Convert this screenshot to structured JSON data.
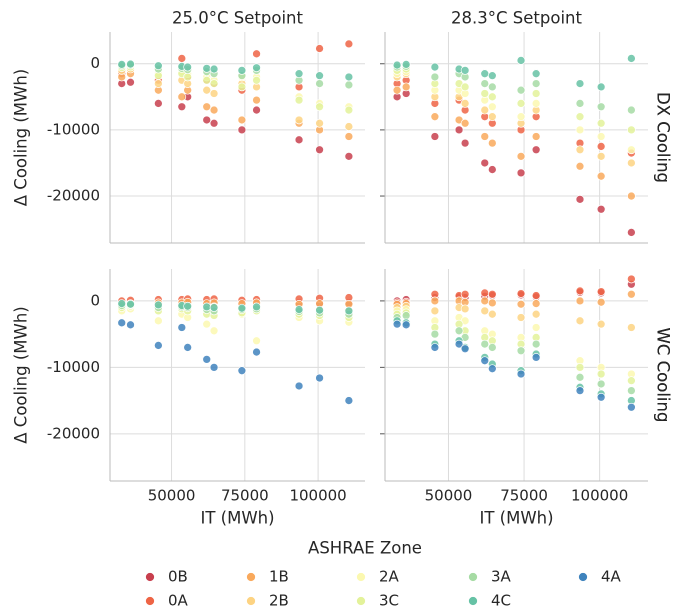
{
  "chart_data": [
    {
      "type": "scatter",
      "title": "25.0°C Setpoint",
      "row_label": "DX Cooling",
      "ylabel": "Δ Cooling (MWh)",
      "legend_title": "ASHRAE Zone",
      "grid": true,
      "xlim": [
        29000,
        116000
      ],
      "ylim": [
        -27100,
        4800
      ],
      "xticks": [
        50000,
        75000,
        100000
      ],
      "yticks": [
        0,
        -10000,
        -20000
      ],
      "x": [
        33000,
        36000,
        45500,
        53500,
        55500,
        62000,
        64500,
        74000,
        79000,
        93500,
        100500,
        110500
      ],
      "series": [
        {
          "name": "0B",
          "color": "#c83f4e",
          "values": [
            -3000,
            -2800,
            -6000,
            -6500,
            -5000,
            -8500,
            -9000,
            -10000,
            -7000,
            -11500,
            -13000,
            -14000
          ]
        },
        {
          "name": "0A",
          "color": "#ee6445",
          "values": [
            -1500,
            -1000,
            -2500,
            800,
            -2000,
            -2500,
            -3000,
            -4000,
            1500,
            -3500,
            2300,
            3000
          ]
        },
        {
          "name": "1B",
          "color": "#f9a95c",
          "values": [
            -2000,
            -1500,
            -4000,
            -5000,
            -4000,
            -6500,
            -7000,
            -8500,
            -5500,
            -9000,
            -10000,
            -11000
          ]
        },
        {
          "name": "2B",
          "color": "#fdd382",
          "values": [
            -1000,
            -800,
            -3000,
            -2500,
            -3000,
            -4000,
            -4500,
            -3000,
            -3500,
            -8500,
            -9000,
            -9500
          ]
        },
        {
          "name": "2A",
          "color": "#fbf8b0",
          "values": [
            -500,
            -400,
            -1500,
            -1200,
            -1500,
            -2000,
            -2500,
            -2000,
            -2000,
            -5000,
            -6000,
            -6500
          ]
        },
        {
          "name": "3C",
          "color": "#e3f29a",
          "values": [
            -600,
            -500,
            -1800,
            -1500,
            -2000,
            -2500,
            -3000,
            -3500,
            -2500,
            -5500,
            -6500,
            -7000
          ]
        },
        {
          "name": "3A",
          "color": "#a6dba4",
          "values": [
            -300,
            -200,
            -800,
            -700,
            -900,
            -1200,
            -1500,
            -1800,
            -1000,
            -2500,
            -3000,
            -3200
          ]
        },
        {
          "name": "4C",
          "color": "#66c2a5",
          "values": [
            -100,
            -50,
            -300,
            -400,
            -500,
            -700,
            -800,
            -1000,
            -600,
            -1500,
            -1800,
            -2000
          ]
        },
        {
          "name": "4A",
          "color": "#3f83bd",
          "values": [
            null,
            null,
            null,
            null,
            null,
            null,
            null,
            null,
            null,
            null,
            null,
            null
          ]
        }
      ]
    },
    {
      "type": "scatter",
      "title": "28.3°C Setpoint",
      "row_label": "DX Cooling",
      "grid": true,
      "xlim": [
        29000,
        116000
      ],
      "ylim": [
        -27100,
        4800
      ],
      "xticks": [
        50000,
        75000,
        100000
      ],
      "yticks": [
        0,
        -10000,
        -20000
      ],
      "x": [
        33000,
        36000,
        45500,
        53500,
        55500,
        62000,
        64500,
        74000,
        79000,
        93500,
        100500,
        110500
      ],
      "series": [
        {
          "name": "0B",
          "color": "#c83f4e",
          "values": [
            -5000,
            -4500,
            -11000,
            -10000,
            -12000,
            -15000,
            -16000,
            -16500,
            -13000,
            -20500,
            -22000,
            -25500
          ]
        },
        {
          "name": "0A",
          "color": "#ee6445",
          "values": [
            -3000,
            -2500,
            -6000,
            -5500,
            -7000,
            -8000,
            -9000,
            -10000,
            -8000,
            -12000,
            -12500,
            -13500
          ]
        },
        {
          "name": "1B",
          "color": "#f9a95c",
          "values": [
            -4000,
            -3500,
            -8000,
            -8500,
            -9000,
            -11000,
            -12000,
            -14000,
            -11000,
            -15500,
            -17000,
            -20000
          ]
        },
        {
          "name": "2B",
          "color": "#fdd382",
          "values": [
            -2000,
            -1500,
            -5000,
            -5000,
            -6000,
            -7000,
            -8000,
            -9000,
            -7000,
            -13000,
            -14000,
            -15000
          ]
        },
        {
          "name": "2A",
          "color": "#fbf8b0",
          "values": [
            -1500,
            -1200,
            -4000,
            -4000,
            -4500,
            -5500,
            -6500,
            -8000,
            -6000,
            -10000,
            -11000,
            -13000
          ]
        },
        {
          "name": "3C",
          "color": "#e3f29a",
          "values": [
            -1000,
            -800,
            -3000,
            -3000,
            -3500,
            -4500,
            -5000,
            -6000,
            -4500,
            -8000,
            -9000,
            -10000
          ]
        },
        {
          "name": "3A",
          "color": "#a6dba4",
          "values": [
            -500,
            -400,
            -2000,
            -1500,
            -2000,
            -3000,
            -3500,
            -4000,
            -3000,
            -6000,
            -6500,
            -7000
          ]
        },
        {
          "name": "4C",
          "color": "#66c2a5",
          "values": [
            -200,
            -100,
            -500,
            -800,
            -1000,
            -1500,
            -1800,
            500,
            -1500,
            -3000,
            -3500,
            800
          ]
        },
        {
          "name": "4A",
          "color": "#3f83bd",
          "values": [
            null,
            null,
            null,
            null,
            null,
            null,
            null,
            null,
            null,
            null,
            null,
            null
          ]
        }
      ]
    },
    {
      "type": "scatter",
      "row_label": "WC Cooling",
      "xlabel": "IT (MWh)",
      "ylabel": "Δ Cooling (MWh)",
      "grid": true,
      "xlim": [
        29000,
        116000
      ],
      "ylim": [
        -27100,
        4800
      ],
      "xticks": [
        50000,
        75000,
        100000
      ],
      "yticks": [
        0,
        -10000,
        -20000
      ],
      "x": [
        33000,
        36000,
        45500,
        53500,
        55500,
        62000,
        64500,
        74000,
        79000,
        93500,
        100500,
        110500
      ],
      "series": [
        {
          "name": "0B",
          "color": "#c83f4e",
          "values": [
            -300,
            -200,
            -300,
            -300,
            -200,
            -300,
            -400,
            -300,
            -300,
            -300,
            -400,
            -300
          ]
        },
        {
          "name": "0A",
          "color": "#ee6445",
          "values": [
            0,
            100,
            200,
            200,
            300,
            200,
            300,
            100,
            200,
            300,
            400,
            500
          ]
        },
        {
          "name": "1B",
          "color": "#f9a95c",
          "values": [
            -500,
            -400,
            -300,
            -300,
            -200,
            -400,
            -300,
            -400,
            -300,
            -500,
            -400,
            -500
          ]
        },
        {
          "name": "2B",
          "color": "#fdd382",
          "values": [
            -800,
            -600,
            -700,
            -900,
            -800,
            -1000,
            -900,
            -1200,
            -1000,
            -1500,
            -1400,
            -1600
          ]
        },
        {
          "name": "2A",
          "color": "#fbf8b0",
          "values": [
            -1500,
            -1200,
            -3000,
            -2000,
            -2500,
            -3500,
            -4500,
            -2000,
            -6000,
            -2500,
            -3000,
            -3200
          ]
        },
        {
          "name": "3C",
          "color": "#e3f29a",
          "values": [
            -1000,
            -800,
            -1500,
            -1200,
            -1500,
            -2000,
            -2200,
            -1800,
            -1500,
            -2000,
            -2200,
            -2500
          ]
        },
        {
          "name": "3A",
          "color": "#a6dba4",
          "values": [
            -700,
            -600,
            -1000,
            -900,
            -1000,
            -1300,
            -1500,
            -1300,
            -1200,
            -1600,
            -1800,
            -2000
          ]
        },
        {
          "name": "4C",
          "color": "#66c2a5",
          "values": [
            -400,
            -500,
            -600,
            -700,
            -800,
            -900,
            -1000,
            -1100,
            -900,
            -1300,
            -1400,
            -1500
          ]
        },
        {
          "name": "4A",
          "color": "#3f83bd",
          "values": [
            -3300,
            -3600,
            -6700,
            -4000,
            -7000,
            -8800,
            -10000,
            -10500,
            -7700,
            -12800,
            -11600,
            -15000
          ]
        }
      ]
    },
    {
      "type": "scatter",
      "row_label": "WC Cooling",
      "xlabel": "IT (MWh)",
      "grid": true,
      "xlim": [
        29000,
        116000
      ],
      "ylim": [
        -27100,
        4800
      ],
      "xticks": [
        50000,
        75000,
        100000
      ],
      "yticks": [
        0,
        -10000,
        -20000
      ],
      "x": [
        33000,
        36000,
        45500,
        53500,
        55500,
        62000,
        64500,
        74000,
        79000,
        93500,
        100500,
        110500
      ],
      "series": [
        {
          "name": "0B",
          "color": "#c83f4e",
          "values": [
            0,
            200,
            500,
            600,
            500,
            700,
            800,
            900,
            600,
            1300,
            1200,
            2500
          ]
        },
        {
          "name": "0A",
          "color": "#ee6445",
          "values": [
            -300,
            -200,
            1000,
            800,
            1000,
            1200,
            1000,
            1100,
            800,
            1500,
            1400,
            3300
          ]
        },
        {
          "name": "1B",
          "color": "#f9a95c",
          "values": [
            -500,
            -400,
            0,
            0,
            -200,
            0,
            -300,
            -500,
            -400,
            0,
            -200,
            1000
          ]
        },
        {
          "name": "2B",
          "color": "#fdd382",
          "values": [
            -1000,
            -800,
            -1500,
            -1000,
            -1200,
            -1500,
            -2000,
            -2500,
            -2000,
            -3000,
            -3500,
            -4000
          ]
        },
        {
          "name": "2A",
          "color": "#fbf8b0",
          "values": [
            -1500,
            -1300,
            -3000,
            -2500,
            -3000,
            -4500,
            -5000,
            -5500,
            -4000,
            -9000,
            -10000,
            -11000
          ]
        },
        {
          "name": "3C",
          "color": "#e3f29a",
          "values": [
            -2000,
            -1800,
            -4000,
            -3500,
            -4500,
            -5500,
            -6000,
            -6500,
            -5500,
            -10000,
            -11000,
            -12000
          ]
        },
        {
          "name": "3A",
          "color": "#a6dba4",
          "values": [
            -2500,
            -2200,
            -5000,
            -4500,
            -5500,
            -6500,
            -7000,
            -7500,
            -6500,
            -11500,
            -12500,
            -13500
          ]
        },
        {
          "name": "4C",
          "color": "#66c2a5",
          "values": [
            -3000,
            -3300,
            -6500,
            -6000,
            -7000,
            -8500,
            -9500,
            -10500,
            -8000,
            -13000,
            -14000,
            -15000
          ]
        },
        {
          "name": "4A",
          "color": "#3f83bd",
          "values": [
            -3500,
            -3600,
            -7000,
            -6500,
            -7200,
            -9000,
            -10200,
            -11000,
            -8500,
            -13500,
            -14500,
            -16000
          ]
        }
      ]
    }
  ]
}
